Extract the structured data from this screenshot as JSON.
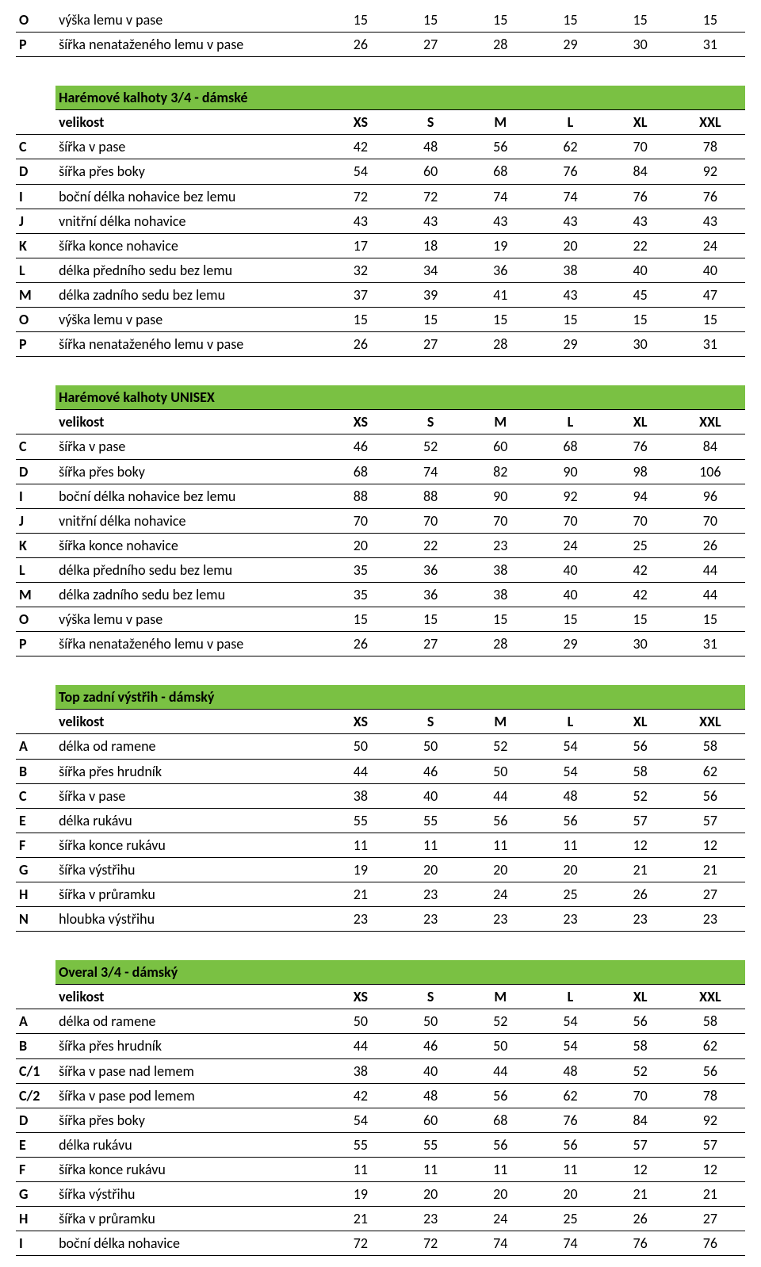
{
  "size_header_label": "velikost",
  "sizes": [
    "XS",
    "S",
    "M",
    "L",
    "XL",
    "XXL"
  ],
  "colors": {
    "title_bg": "#7ac143",
    "border": "#000000",
    "text": "#000000",
    "background": "#ffffff"
  },
  "pre_rows": [
    {
      "code": "O",
      "label": "výška lemu v pase",
      "vals": [
        15,
        15,
        15,
        15,
        15,
        15
      ]
    },
    {
      "code": "P",
      "label": "šířka nenataženého lemu v pase",
      "vals": [
        26,
        27,
        28,
        29,
        30,
        31
      ]
    }
  ],
  "tables": [
    {
      "title": "Harémové kalhoty 3/4 - dámské",
      "rows": [
        {
          "code": "C",
          "label": "šířka v pase",
          "vals": [
            42,
            48,
            56,
            62,
            70,
            78
          ]
        },
        {
          "code": "D",
          "label": "šířka přes boky",
          "vals": [
            54,
            60,
            68,
            76,
            84,
            92
          ]
        },
        {
          "code": "I",
          "label": "boční délka nohavice bez lemu",
          "vals": [
            72,
            72,
            74,
            74,
            76,
            76
          ]
        },
        {
          "code": "J",
          "label": "vnitřní délka nohavice",
          "vals": [
            43,
            43,
            43,
            43,
            43,
            43
          ]
        },
        {
          "code": "K",
          "label": "šířka konce nohavice",
          "vals": [
            17,
            18,
            19,
            20,
            22,
            24
          ]
        },
        {
          "code": "L",
          "label": "délka předního sedu bez lemu",
          "vals": [
            32,
            34,
            36,
            38,
            40,
            40
          ]
        },
        {
          "code": "M",
          "label": "délka zadního sedu bez lemu",
          "vals": [
            37,
            39,
            41,
            43,
            45,
            47
          ]
        },
        {
          "code": "O",
          "label": "výška lemu v pase",
          "vals": [
            15,
            15,
            15,
            15,
            15,
            15
          ]
        },
        {
          "code": "P",
          "label": "šířka nenataženého lemu v pase",
          "vals": [
            26,
            27,
            28,
            29,
            30,
            31
          ]
        }
      ]
    },
    {
      "title": "Harémové kalhoty UNISEX",
      "rows": [
        {
          "code": "C",
          "label": "šířka v pase",
          "vals": [
            46,
            52,
            60,
            68,
            76,
            84
          ]
        },
        {
          "code": "D",
          "label": "šířka přes boky",
          "vals": [
            68,
            74,
            82,
            90,
            98,
            106
          ]
        },
        {
          "code": "I",
          "label": "boční délka nohavice bez lemu",
          "vals": [
            88,
            88,
            90,
            92,
            94,
            96
          ]
        },
        {
          "code": "J",
          "label": "vnitřní délka nohavice",
          "vals": [
            70,
            70,
            70,
            70,
            70,
            70
          ]
        },
        {
          "code": "K",
          "label": "šířka konce nohavice",
          "vals": [
            20,
            22,
            23,
            24,
            25,
            26
          ]
        },
        {
          "code": "L",
          "label": "délka předního sedu bez lemu",
          "vals": [
            35,
            36,
            38,
            40,
            42,
            44
          ]
        },
        {
          "code": "M",
          "label": "délka zadního sedu bez lemu",
          "vals": [
            35,
            36,
            38,
            40,
            42,
            44
          ]
        },
        {
          "code": "O",
          "label": "výška lemu v pase",
          "vals": [
            15,
            15,
            15,
            15,
            15,
            15
          ]
        },
        {
          "code": "P",
          "label": "šířka nenataženého lemu v pase",
          "vals": [
            26,
            27,
            28,
            29,
            30,
            31
          ]
        }
      ]
    },
    {
      "title": "Top zadní výstřih - dámský",
      "rows": [
        {
          "code": "A",
          "label": "délka od ramene",
          "vals": [
            50,
            50,
            52,
            54,
            56,
            58
          ]
        },
        {
          "code": "B",
          "label": "šířka přes hrudník",
          "vals": [
            44,
            46,
            50,
            54,
            58,
            62
          ]
        },
        {
          "code": "C",
          "label": "šířka v pase",
          "vals": [
            38,
            40,
            44,
            48,
            52,
            56
          ]
        },
        {
          "code": "E",
          "label": "délka rukávu",
          "vals": [
            55,
            55,
            56,
            56,
            57,
            57
          ]
        },
        {
          "code": "F",
          "label": "šířka konce rukávu",
          "vals": [
            11,
            11,
            11,
            11,
            12,
            12
          ]
        },
        {
          "code": "G",
          "label": "šířka výstřihu",
          "vals": [
            19,
            20,
            20,
            20,
            21,
            21
          ]
        },
        {
          "code": "H",
          "label": "šířka v průramku",
          "vals": [
            21,
            23,
            24,
            25,
            26,
            27
          ]
        },
        {
          "code": "N",
          "label": "hloubka výstřihu",
          "vals": [
            23,
            23,
            23,
            23,
            23,
            23
          ]
        }
      ]
    },
    {
      "title": "Overal 3/4 - dámský",
      "rows": [
        {
          "code": "A",
          "label": "délka od ramene",
          "vals": [
            50,
            50,
            52,
            54,
            56,
            58
          ]
        },
        {
          "code": "B",
          "label": "šířka přes hrudník",
          "vals": [
            44,
            46,
            50,
            54,
            58,
            62
          ]
        },
        {
          "code": "C/1",
          "label": "šířka v pase nad lemem",
          "vals": [
            38,
            40,
            44,
            48,
            52,
            56
          ]
        },
        {
          "code": "C/2",
          "label": "šířka v pase pod lemem",
          "vals": [
            42,
            48,
            56,
            62,
            70,
            78
          ]
        },
        {
          "code": "D",
          "label": "šířka přes boky",
          "vals": [
            54,
            60,
            68,
            76,
            84,
            92
          ]
        },
        {
          "code": "E",
          "label": "délka rukávu",
          "vals": [
            55,
            55,
            56,
            56,
            57,
            57
          ]
        },
        {
          "code": "F",
          "label": "šířka konce rukávu",
          "vals": [
            11,
            11,
            11,
            11,
            12,
            12
          ]
        },
        {
          "code": "G",
          "label": "šířka výstřihu",
          "vals": [
            19,
            20,
            20,
            20,
            21,
            21
          ]
        },
        {
          "code": "H",
          "label": "šířka v průramku",
          "vals": [
            21,
            23,
            24,
            25,
            26,
            27
          ]
        },
        {
          "code": "I",
          "label": "boční délka nohavice",
          "vals": [
            72,
            72,
            74,
            74,
            76,
            76
          ]
        }
      ]
    }
  ]
}
